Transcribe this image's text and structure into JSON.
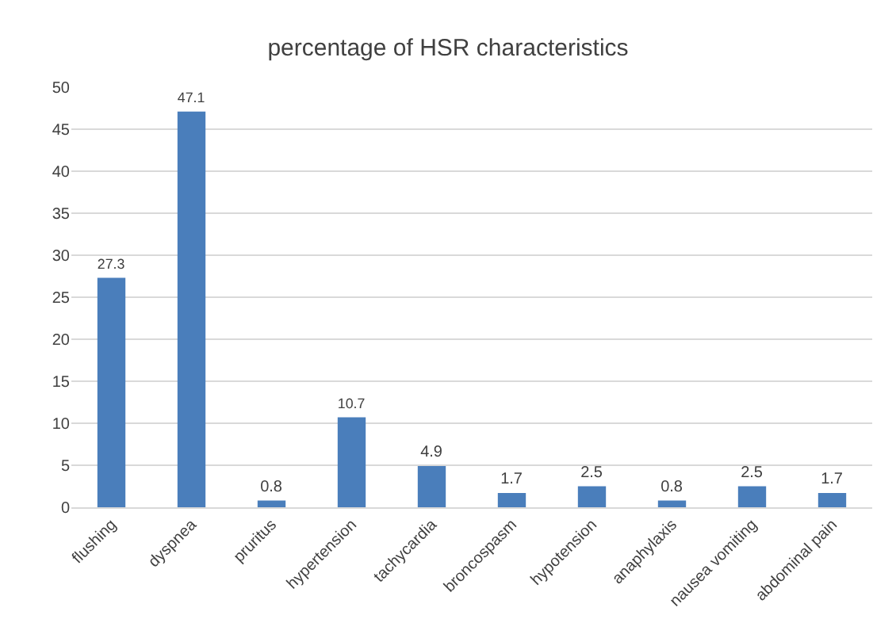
{
  "chart_data": {
    "type": "bar",
    "title": "percentage of HSR characteristics",
    "categories": [
      "flushing",
      "dyspnea",
      "pruritus",
      "hypertension",
      "tachycardia",
      "broncospasm",
      "hypotension",
      "anaphylaxis",
      "nausea vomiting",
      "abdominal pain"
    ],
    "values": [
      27.3,
      47.1,
      0.8,
      10.7,
      4.9,
      1.7,
      2.5,
      0.8,
      2.5,
      1.7
    ],
    "color": "#4a7ebb",
    "ylim": [
      0,
      50
    ],
    "yticks": [
      0,
      5,
      10,
      15,
      20,
      25,
      30,
      35,
      40,
      45,
      50
    ],
    "grid": "y",
    "data_labels": true,
    "legend": false
  }
}
